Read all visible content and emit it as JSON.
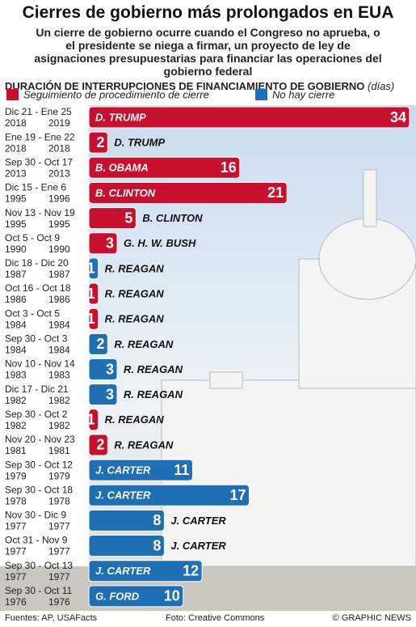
{
  "chart_data": {
    "type": "hbar",
    "title": "Cierres de gobierno más prolongados en EUA",
    "subtitle": "Un cierre de gobierno ocurre cuando el Congreso no aprueba, o el presidente se niega a firmar, un proyecto de ley de asignaciones presupuestarias para financiar las operaciones del gobierno federal",
    "xlabel": "DURACIÓN DE INTERRUPCIONES DE FINANCIAMIENTO DE GOBIERNO",
    "xlabel_unit": "(días)",
    "categories": [
      "Dic 21 - Ene 25",
      "Ene 19 - Ene 22",
      "Sep 30 - Oct 17",
      "Dic 15 - Ene 6",
      "Nov 13 - Nov 19",
      "Oct 5 - Oct 9",
      "Dic 18 - Dic 20",
      "Oct 16 - Oct 18",
      "Oct 3 - Oct 5",
      "Sep 30 - Oct 3",
      "Nov 10 - Nov 14",
      "Dic 17 - Dic 21",
      "Sep 30 - Oct 2",
      "Nov 20 - Nov 23",
      "Sep 30 - Oct 12",
      "Sep 30 - Oct 18",
      "Nov 30 - Dic 9",
      "Oct 31 - Nov 9",
      "Sep 30 - Oct 13",
      "Sep 30 - Oct 11"
    ],
    "years": [
      [
        "2018",
        "2019"
      ],
      [
        "2018",
        "2018"
      ],
      [
        "2013",
        "2013"
      ],
      [
        "1995",
        "1996"
      ],
      [
        "1995",
        "1995"
      ],
      [
        "1990",
        "1990"
      ],
      [
        "1987",
        "1987"
      ],
      [
        "1986",
        "1986"
      ],
      [
        "1984",
        "1984"
      ],
      [
        "1984",
        "1984"
      ],
      [
        "1983",
        "1983"
      ],
      [
        "1982",
        "1982"
      ],
      [
        "1982",
        "1982"
      ],
      [
        "1981",
        "1981"
      ],
      [
        "1979",
        "1979"
      ],
      [
        "1978",
        "1978"
      ],
      [
        "1977",
        "1977"
      ],
      [
        "1977",
        "1977"
      ],
      [
        "1977",
        "1977"
      ],
      [
        "1976",
        "1976"
      ]
    ],
    "labels": [
      "D. TRUMP",
      "D. TRUMP",
      "B. OBAMA",
      "B. CLINTON",
      "B. CLINTON",
      "G. H. W. BUSH",
      "R. REAGAN",
      "R. REAGAN",
      "R. REAGAN",
      "R. REAGAN",
      "R. REAGAN",
      "R. REAGAN",
      "R. REAGAN",
      "R. REAGAN",
      "J. CARTER",
      "J. CARTER",
      "J. CARTER",
      "J. CARTER",
      "J. CARTER",
      "G. FORD"
    ],
    "series": [
      {
        "name": "Seguimiento de procedimiento de cierre",
        "color": "#c8102e",
        "values": [
          34,
          2,
          16,
          21,
          5,
          3,
          null,
          1,
          1,
          null,
          null,
          null,
          1,
          2,
          null,
          null,
          null,
          null,
          null,
          null
        ]
      },
      {
        "name": "No hay cierre",
        "color": "#1f6fb5",
        "values": [
          null,
          null,
          null,
          null,
          null,
          null,
          1,
          null,
          null,
          2,
          3,
          3,
          null,
          null,
          11,
          17,
          8,
          8,
          12,
          10
        ]
      }
    ],
    "xlim": [
      0,
      34
    ],
    "footer": {
      "sources": "Fuentes: AP, USAFacts",
      "photo": "Foto: Creative Commons",
      "credit": "© GRAPHIC NEWS"
    }
  }
}
